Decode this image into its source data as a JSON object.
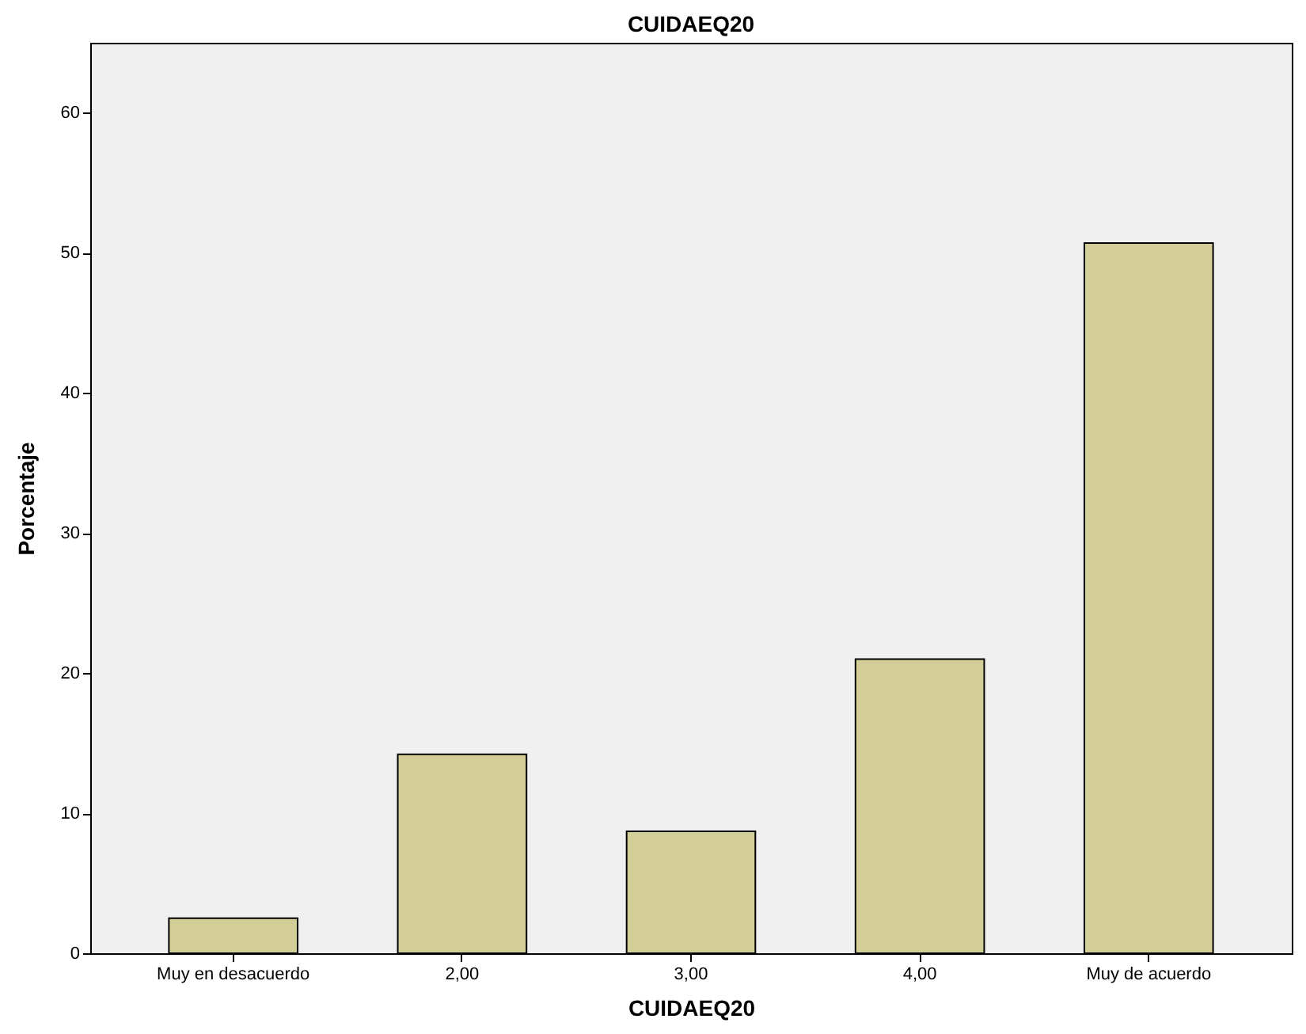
{
  "chart_data": {
    "type": "bar",
    "title": "CUIDAEQ20",
    "xlabel": "CUIDAEQ20",
    "ylabel": "Porcentaje",
    "categories": [
      "Muy en desacuerdo",
      "2,00",
      "3,00",
      "4,00",
      "Muy de acuerdo"
    ],
    "values": [
      2.5,
      14.2,
      8.7,
      21.0,
      50.7
    ],
    "color": "#d3ce97",
    "ylim": [
      0,
      65
    ],
    "yticks": [
      0,
      10,
      20,
      30,
      40,
      50,
      60
    ],
    "grid": false
  }
}
